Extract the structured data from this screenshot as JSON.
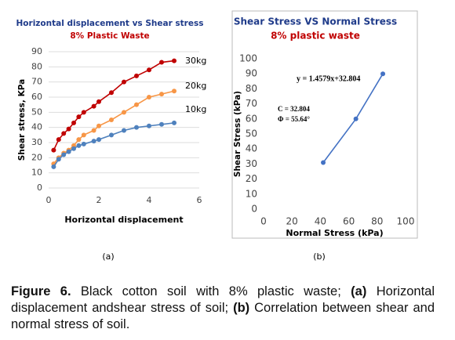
{
  "chart_data": [
    {
      "type": "line",
      "title": "Horizontal displacement vs Shear stress",
      "subtitle": "8% Plastic  Waste",
      "x_label": "Horizontal displacement",
      "y_label": "Shear stress, KPa",
      "panel_label": "(a)",
      "x": [
        0.2,
        0.4,
        0.6,
        0.8,
        1,
        1.2,
        1.4,
        1.8,
        2,
        2.5,
        3,
        3.5,
        4,
        4.5,
        5
      ],
      "series": [
        {
          "name": "30kg",
          "color": "#c00000",
          "values": [
            25,
            32,
            36,
            39,
            43,
            47,
            50,
            54,
            57,
            63,
            70,
            74,
            78,
            83,
            84
          ]
        },
        {
          "name": "20kg",
          "color": "#f79646",
          "values": [
            16,
            20,
            23,
            25,
            28,
            32,
            35,
            38,
            41,
            45,
            50,
            55,
            60,
            62,
            64
          ]
        },
        {
          "name": "10kg",
          "color": "#4f81bd",
          "values": [
            14,
            19,
            22,
            24,
            26,
            28,
            29,
            31,
            32,
            35,
            38,
            40,
            41,
            42,
            43
          ]
        }
      ],
      "xlim": [
        0,
        6
      ],
      "xticks": [
        0,
        2,
        4,
        6
      ],
      "ylim": [
        0,
        90
      ],
      "yticks": [
        0,
        10,
        20,
        30,
        40,
        50,
        60,
        70,
        80,
        90
      ],
      "grid": true
    },
    {
      "type": "scatter",
      "title": "Shear Stress VS Normal Stress",
      "subtitle": "8% plastic waste",
      "x_label": "Normal Stress (kPa)",
      "y_label": "Shear Stress (kPa)",
      "panel_label": "(b)",
      "annotations": [
        "y = 1.4579x+32.804",
        "C = 32.804",
        "Φ = 55.64°"
      ],
      "x": [
        42,
        65,
        84
      ],
      "series": [
        {
          "name": "Shear Stress",
          "color": "#4472c4",
          "values": [
            31,
            60,
            90
          ]
        }
      ],
      "xlim": [
        0,
        100
      ],
      "xticks": [
        0,
        20,
        40,
        60,
        80,
        100
      ],
      "ylim": [
        0,
        100
      ],
      "yticks": [
        0,
        10,
        20,
        30,
        40,
        50,
        60,
        70,
        80,
        90,
        100
      ],
      "grid": false
    }
  ],
  "caption": {
    "label": "Figure 6.",
    "parts": [
      " Black cotton soil with 8% plastic waste; ",
      "(a)",
      " Horizontal displacement andshear stress of soil; ",
      "(b)",
      " Correlation between shear and normal stress of soil."
    ]
  }
}
